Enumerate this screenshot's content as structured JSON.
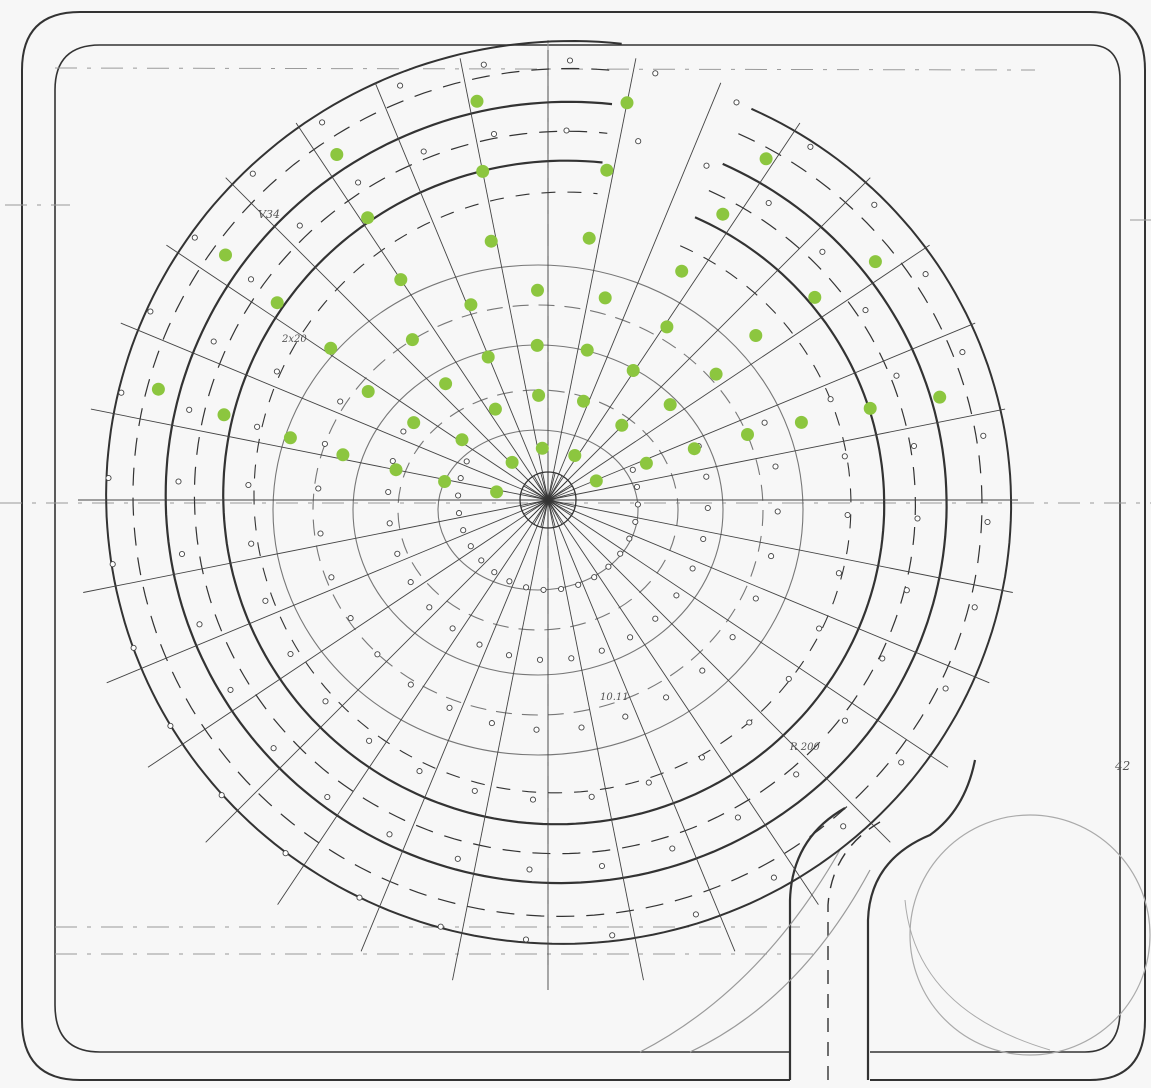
{
  "drawing": {
    "paper_color": "#f7f7f7",
    "line_color": "#333333",
    "faint_line_color": "#9a9a9a",
    "marker_color": "#8cc63f",
    "spiral_lanes": 4,
    "radial_spokes": 32,
    "highlighted_points": [
      {
        "ring": 1,
        "count": 5
      },
      {
        "ring": 2,
        "count": 7
      },
      {
        "ring": 3,
        "count": 9
      },
      {
        "ring": 4,
        "count": 9
      },
      {
        "ring": 5,
        "count": 8
      },
      {
        "ring": 6,
        "count": 8
      },
      {
        "ring": 7,
        "count": 8
      }
    ],
    "annotations": [
      "V34",
      "2x20",
      "10.11",
      "R 200",
      "42"
    ]
  }
}
